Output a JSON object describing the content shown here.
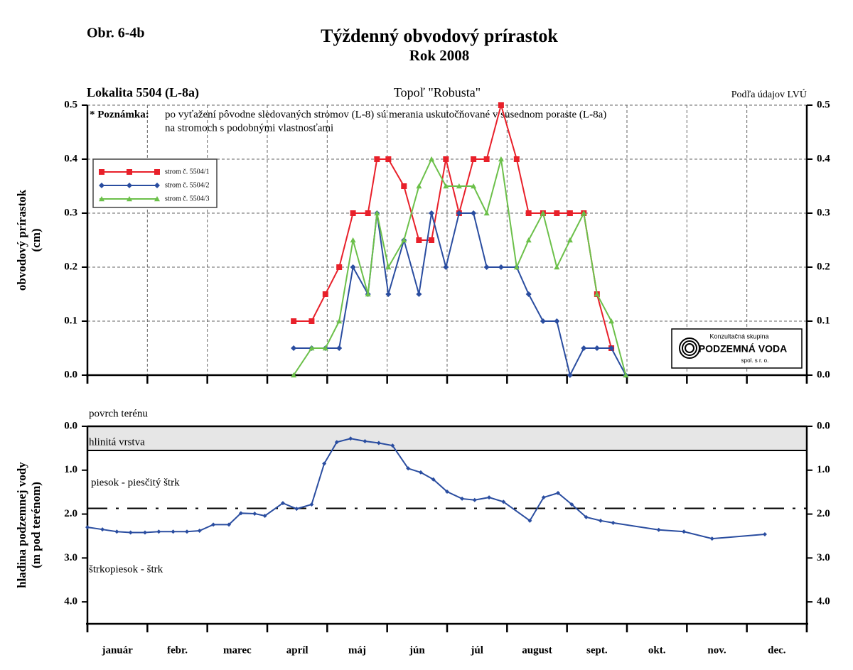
{
  "header": {
    "figure_label": "Obr. 6-4b",
    "title": "Týždenný obvodový prírastok",
    "subtitle": "Rok 2008"
  },
  "chart_data": [
    {
      "type": "line",
      "location": "Lokalita 5504 (L-8a)",
      "species": "Topoľ \"Robusta\"",
      "source": "Podľa údajov LVÚ",
      "note_label": "* Poznámka:",
      "note": [
        "po vyťažení pôvodne sledovaných stromov (L-8) sú merania uskutočňované v susednom poraste (L-8a)",
        "na stromoch s podobnými vlastnosťami"
      ],
      "ylabel": [
        "obvodový prírastok",
        "(cm)"
      ],
      "logo": [
        "Konzultačná skupina",
        "PODZEMNÁ VODA",
        "spol. s r. o."
      ],
      "x": [
        3.44,
        3.74,
        3.97,
        4.2,
        4.43,
        4.68,
        4.83,
        5.02,
        5.28,
        5.53,
        5.74,
        5.98,
        6.2,
        6.44,
        6.66,
        6.9,
        7.16,
        7.36,
        7.6,
        7.83,
        8.05,
        8.28,
        8.5,
        8.74,
        8.98
      ],
      "series": [
        {
          "name": "strom č. 5504/1",
          "color": "#e8202a",
          "marker": "square",
          "values": [
            0.1,
            0.1,
            0.15,
            0.2,
            0.3,
            0.3,
            0.4,
            0.4,
            0.35,
            0.25,
            0.25,
            0.4,
            0.3,
            0.4,
            0.4,
            0.5,
            0.4,
            0.3,
            0.3,
            0.3,
            0.3,
            0.3,
            0.15,
            0.05,
            null
          ]
        },
        {
          "name": "strom č. 5504/2",
          "color": "#2a4da0",
          "marker": "diamond",
          "values": [
            0.05,
            0.05,
            0.05,
            0.05,
            0.2,
            0.15,
            0.3,
            0.15,
            0.25,
            0.15,
            0.3,
            0.2,
            0.3,
            0.3,
            0.2,
            0.2,
            0.2,
            0.15,
            0.1,
            0.1,
            0.0,
            0.05,
            0.05,
            0.05,
            0.0
          ]
        },
        {
          "name": "strom č. 5504/3",
          "color": "#6cc04a",
          "marker": "triangle",
          "values": [
            0.0,
            0.05,
            0.05,
            0.1,
            0.25,
            0.15,
            0.3,
            0.2,
            0.25,
            0.35,
            0.4,
            0.35,
            0.35,
            0.35,
            0.3,
            0.4,
            0.2,
            0.25,
            0.3,
            0.2,
            0.25,
            0.3,
            0.15,
            0.1,
            0.0
          ]
        }
      ],
      "xlim": [
        0,
        12
      ],
      "xticks": [
        0,
        1,
        2,
        3,
        4,
        5,
        6,
        7,
        8,
        9,
        10,
        11,
        12
      ],
      "ylim": [
        0,
        0.5
      ],
      "yticks": [
        {
          "value": 0,
          "label": "0.0"
        },
        0.1,
        0.2,
        0.3,
        0.4,
        0.5
      ],
      "grid": true,
      "legend": "upper left"
    },
    {
      "type": "line",
      "ylabel": [
        "hladina podzemnej vody",
        "(m pod terénom)"
      ],
      "annotations": [
        "povrch terénu",
        "hlinitá vrstva",
        "piesok - piesčitý štrk",
        "štrkopiesok - štrk"
      ],
      "clay_layer_depth": 0.55,
      "reference_level": 1.87,
      "categories": [
        "január",
        "febr.",
        "marec",
        "apríl",
        "máj",
        "jún",
        "júl",
        "august",
        "sept.",
        "okt.",
        "nov.",
        "dec."
      ],
      "x": [
        0.0,
        0.25,
        0.49,
        0.72,
        0.96,
        1.19,
        1.43,
        1.66,
        1.87,
        2.1,
        2.36,
        2.56,
        2.79,
        2.96,
        3.26,
        3.49,
        3.74,
        3.95,
        4.16,
        4.39,
        4.63,
        4.86,
        5.09,
        5.35,
        5.56,
        5.77,
        6.0,
        6.25,
        6.46,
        6.7,
        6.94,
        7.38,
        7.61,
        7.85,
        8.08,
        8.32,
        8.56,
        8.77,
        9.53,
        9.95,
        10.42,
        11.3
      ],
      "series": [
        {
          "name": null,
          "color": "#2a4da0",
          "marker": "diamond",
          "values": [
            2.3,
            2.35,
            2.4,
            2.42,
            2.42,
            2.4,
            2.4,
            2.4,
            2.38,
            2.24,
            2.24,
            1.98,
            1.99,
            2.04,
            1.75,
            1.88,
            1.78,
            0.85,
            0.36,
            0.28,
            0.34,
            0.38,
            0.44,
            0.96,
            1.05,
            1.21,
            1.49,
            1.65,
            1.68,
            1.62,
            1.72,
            2.15,
            1.62,
            1.52,
            1.78,
            2.07,
            2.15,
            2.2,
            2.36,
            2.4,
            2.56,
            2.46
          ]
        }
      ],
      "xlim": [
        0,
        12
      ],
      "xticks": [
        0,
        1,
        2,
        3,
        4,
        5,
        6,
        7,
        8,
        9,
        10,
        11,
        12
      ],
      "ylim": [
        0,
        4.5
      ],
      "y_inverted": true,
      "yticks": [
        {
          "value": 0,
          "label": "0.0"
        },
        {
          "value": 1,
          "label": "1.0"
        },
        {
          "value": 2,
          "label": "2.0"
        },
        {
          "value": 3,
          "label": "3.0"
        },
        {
          "value": 4,
          "label": "4.0"
        }
      ],
      "grid": false
    }
  ]
}
